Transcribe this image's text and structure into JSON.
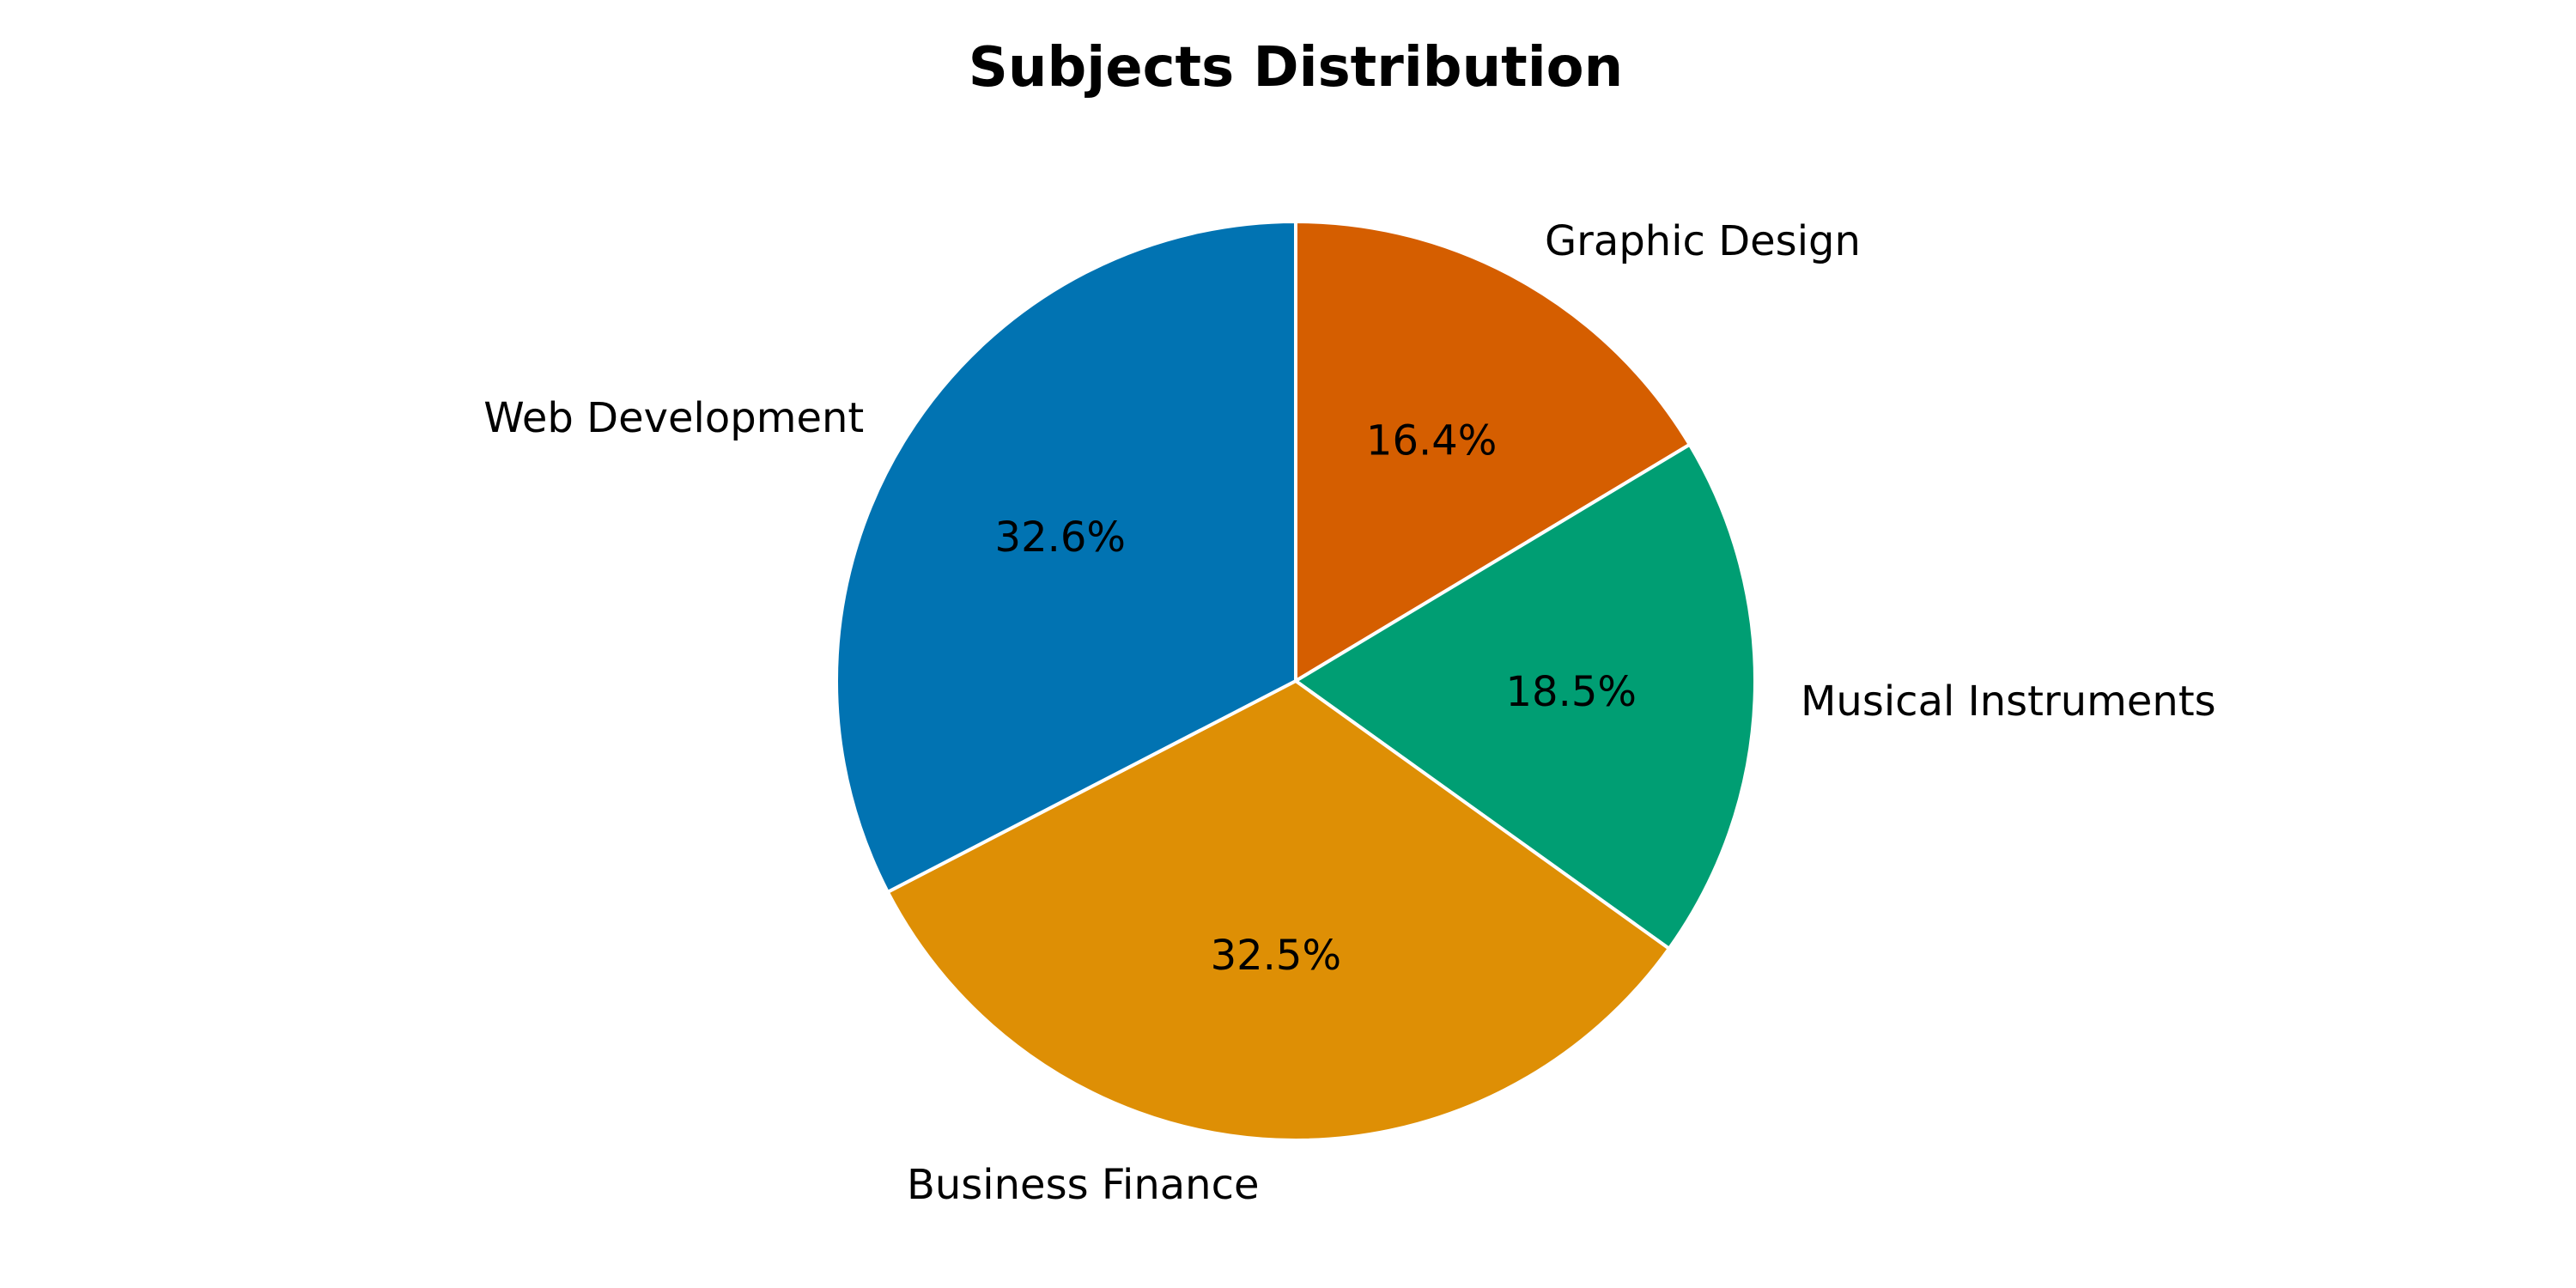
{
  "chart_data": {
    "type": "pie",
    "title": "Subjects Distribution",
    "categories": [
      "Graphic Design",
      "Musical Instruments",
      "Business Finance",
      "Web Development"
    ],
    "values": [
      16.4,
      18.5,
      32.5,
      32.6
    ],
    "value_labels": [
      "16.4%",
      "18.5%",
      "32.5%",
      "32.6%"
    ],
    "colors": [
      "#D55E00",
      "#009E73",
      "#DE8F05",
      "#0173B2"
    ],
    "start_angle_deg": 90,
    "direction": "clockwise",
    "legend": "none"
  }
}
